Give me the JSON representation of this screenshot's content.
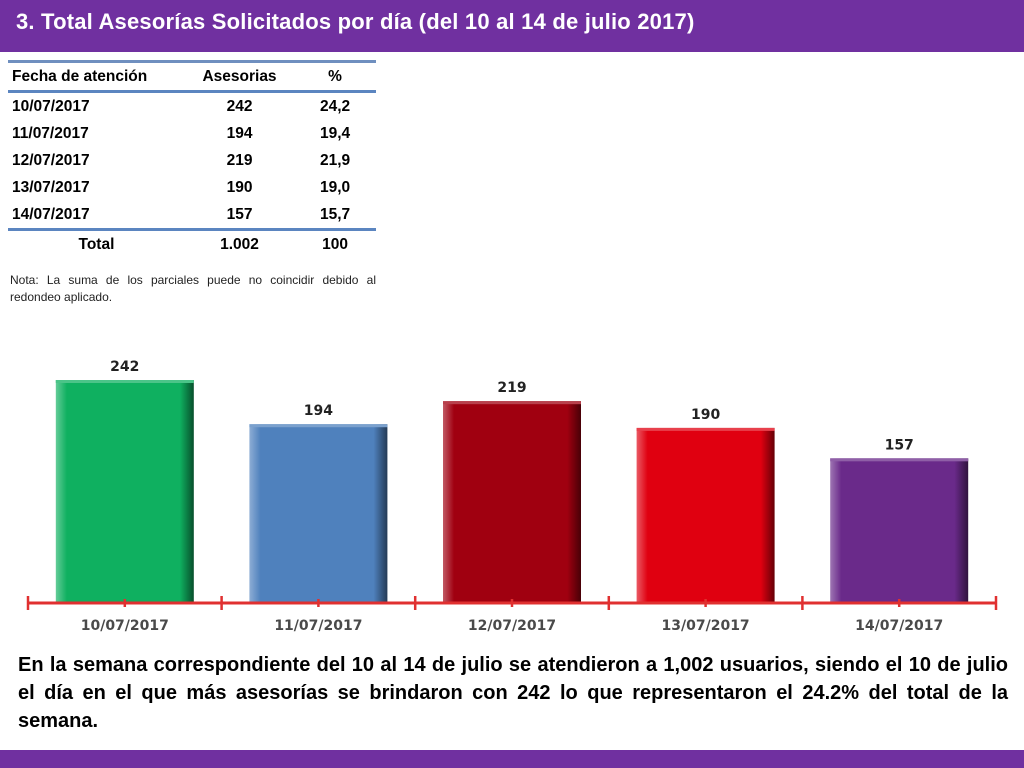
{
  "header": {
    "title": "3.  Total Asesorías Solicitados por día  (del 10 al 14 de julio 2017)"
  },
  "table": {
    "columns": [
      "Fecha de atención",
      "Asesorias",
      "%"
    ],
    "rows": [
      [
        "10/07/2017",
        "242",
        "24,2"
      ],
      [
        "11/07/2017",
        "194",
        "19,4"
      ],
      [
        "12/07/2017",
        "219",
        "21,9"
      ],
      [
        "13/07/2017",
        "190",
        "19,0"
      ],
      [
        "14/07/2017",
        "157",
        "15,7"
      ]
    ],
    "total": [
      "Total",
      "1.002",
      "100"
    ]
  },
  "note": "Nota: La suma de los parciales puede no coincidir debido al redondeo aplicado.",
  "chart_data": {
    "type": "bar",
    "categories": [
      "10/07/2017",
      "11/07/2017",
      "12/07/2017",
      "13/07/2017",
      "14/07/2017"
    ],
    "values": [
      242,
      194,
      219,
      190,
      157
    ],
    "data_labels": [
      "242",
      "194",
      "219",
      "190",
      "157"
    ],
    "bar_colors": [
      "#0fb060",
      "#4f81bd",
      "#a00010",
      "#e00010",
      "#6a2a8a"
    ],
    "axis_color": "#e03030",
    "grid": false,
    "legend": "none"
  },
  "summary": "En la semana correspondiente del 10 al 14 de julio se atendieron a 1,002 usuarios, siendo el 10 de julio el día en el que más asesorías se brindaron con 242 lo que representaron el 24.2% del total de la semana.",
  "colors": {
    "header_bg": "#7030a0",
    "header_text": "#ffffff",
    "table_rule": "#5b85c0"
  }
}
